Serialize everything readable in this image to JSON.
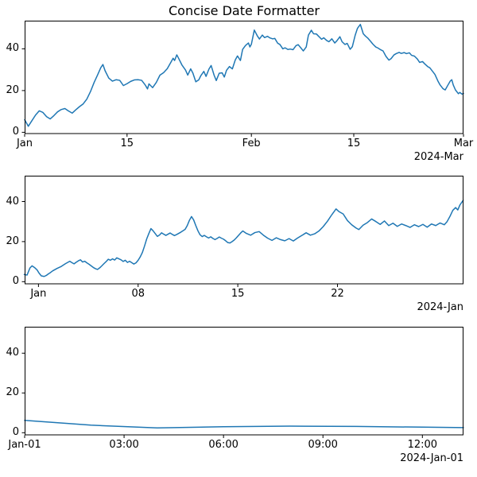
{
  "figure": {
    "title": "Concise Date Formatter",
    "background_color": "#ffffff",
    "line_color": "#1f77b4",
    "axis_color": "#000000",
    "text_color": "#000000"
  },
  "chart_data": [
    {
      "type": "line",
      "title": "",
      "xlabel": "",
      "ylabel": "",
      "description": "Random-walk time series, Jan 1 to Mar 1 2024, x in days since 2024-01-01",
      "xlim": [
        0,
        60
      ],
      "ylim": [
        -0.8,
        53.5
      ],
      "grid": false,
      "xticks": {
        "values": [
          0,
          14,
          31,
          45,
          60
        ],
        "labels": [
          "Jan",
          "15",
          "Feb",
          "15",
          "Mar"
        ]
      },
      "yticks": {
        "values": [
          0,
          20,
          40
        ],
        "labels": [
          "0",
          "20",
          "40"
        ]
      },
      "offset_label": "2024-Mar",
      "x": [
        0,
        0.5,
        1,
        1.5,
        2,
        2.5,
        3,
        3.5,
        4,
        4.5,
        5,
        5.5,
        6,
        6.5,
        7,
        7.5,
        8,
        8.5,
        9,
        9.5,
        10,
        10.4,
        10.7,
        11,
        11.5,
        12,
        12.5,
        13,
        13.5,
        14,
        14.5,
        15,
        15.5,
        16,
        16.5,
        16.8,
        17,
        17.5,
        18,
        18.5,
        19,
        19.5,
        20,
        20.3,
        20.5,
        20.8,
        21,
        21.5,
        22,
        22.3,
        22.7,
        23,
        23.4,
        23.8,
        24.1,
        24.5,
        24.8,
        25.2,
        25.5,
        25.9,
        26.2,
        26.6,
        27,
        27.3,
        27.6,
        28,
        28.4,
        28.8,
        29.1,
        29.5,
        29.8,
        30.2,
        30.6,
        30.8,
        31,
        31.4,
        31.8,
        32.1,
        32.5,
        32.8,
        33.2,
        33.5,
        33.9,
        34.2,
        34.6,
        34.9,
        35.3,
        35.6,
        36,
        36.3,
        36.7,
        37.1,
        37.4,
        37.8,
        38.1,
        38.5,
        38.8,
        39.2,
        39.5,
        39.9,
        40.2,
        40.6,
        40.9,
        41.3,
        41.6,
        42,
        42.4,
        42.7,
        43.1,
        43.4,
        43.8,
        44.1,
        44.5,
        44.8,
        45.2,
        45.5,
        45.9,
        46.3,
        46.6,
        46.9,
        47.3,
        47.6,
        48,
        48.3,
        48.7,
        49,
        49.4,
        49.8,
        50.1,
        50.5,
        50.8,
        51.2,
        51.5,
        51.9,
        52.2,
        52.6,
        52.9,
        53.3,
        53.7,
        54,
        54.4,
        54.7,
        55.1,
        55.4,
        55.8,
        56.1,
        56.5,
        56.8,
        57.2,
        57.5,
        57.9,
        58.2,
        58.4,
        58.6,
        58.9,
        59.3,
        59.5,
        59.8,
        60
      ],
      "y": [
        6.0,
        2.9,
        5.6,
        8.3,
        10.3,
        9.5,
        7.5,
        6.4,
        8.0,
        9.8,
        10.9,
        11.4,
        10.2,
        9.2,
        10.8,
        12.3,
        13.6,
        15.9,
        19.5,
        23.9,
        27.7,
        30.9,
        32.5,
        29.5,
        26.0,
        24.5,
        25.2,
        24.9,
        22.4,
        23.3,
        24.4,
        25.1,
        25.2,
        24.9,
        22.6,
        20.8,
        23.2,
        21.4,
        23.9,
        27.4,
        28.6,
        30.5,
        33.6,
        35.5,
        34.4,
        37.1,
        35.8,
        32.3,
        29.8,
        27.4,
        30.4,
        28.4,
        24.2,
        25.1,
        27.2,
        29.2,
        26.8,
        30.3,
        32.0,
        27.4,
        24.8,
        28.3,
        28.5,
        26.5,
        29.7,
        31.5,
        30.4,
        34.7,
        36.6,
        34.4,
        39.7,
        41.6,
        42.8,
        40.9,
        42.2,
        49.0,
        46.3,
        44.7,
        46.6,
        45.4,
        46.0,
        45.3,
        44.8,
        45.0,
        42.7,
        42.1,
        40.0,
        40.5,
        39.7,
        39.9,
        39.6,
        41.5,
        42.0,
        40.3,
        39.0,
        40.9,
        46.6,
        48.9,
        47.2,
        47.1,
        46.0,
        44.6,
        45.3,
        44.0,
        43.4,
        44.8,
        42.8,
        43.9,
        45.8,
        43.4,
        42.1,
        42.6,
        39.8,
        41.0,
        46.6,
        49.8,
        51.7,
        47.2,
        46.1,
        45.2,
        43.6,
        42.3,
        40.9,
        40.4,
        39.5,
        39.0,
        36.4,
        34.6,
        35.3,
        37.1,
        37.7,
        38.3,
        37.8,
        38.2,
        37.7,
        38.1,
        36.9,
        36.5,
        35.1,
        33.5,
        33.9,
        32.8,
        31.5,
        30.9,
        29.1,
        27.7,
        24.6,
        22.7,
        20.9,
        20.3,
        22.8,
        24.6,
        25.2,
        22.7,
        20.3,
        18.5,
        19.1,
        18.3,
        18.6
      ]
    },
    {
      "type": "line",
      "title": "",
      "xlabel": "",
      "ylabel": "",
      "description": "Same random walk zoomed to January 2024, x in days since 2024-01-01",
      "xlim": [
        -0.97,
        29.85
      ],
      "ylim": [
        -1.27,
        52.9
      ],
      "grid": false,
      "xticks": {
        "values": [
          0,
          7,
          14,
          21
        ],
        "labels": [
          "Jan",
          "08",
          "15",
          "22"
        ]
      },
      "yticks": {
        "values": [
          0,
          20,
          40
        ],
        "labels": [
          "0",
          "20",
          "40"
        ]
      },
      "offset_label": "2024-Jan",
      "x": [
        -1.0,
        -0.8,
        -0.6,
        -0.45,
        -0.25,
        -0.1,
        0.05,
        0.2,
        0.4,
        0.55,
        0.7,
        0.85,
        1.0,
        1.15,
        1.3,
        1.45,
        1.6,
        1.75,
        1.9,
        2.05,
        2.2,
        2.35,
        2.5,
        2.65,
        2.8,
        2.95,
        3.1,
        3.25,
        3.4,
        3.55,
        3.7,
        3.85,
        4.0,
        4.15,
        4.3,
        4.45,
        4.6,
        4.75,
        4.9,
        5.05,
        5.2,
        5.35,
        5.5,
        5.65,
        5.8,
        5.95,
        6.1,
        6.25,
        6.4,
        6.55,
        6.7,
        6.85,
        7.0,
        7.15,
        7.3,
        7.45,
        7.6,
        7.75,
        7.9,
        8.05,
        8.2,
        8.35,
        8.5,
        8.65,
        8.8,
        8.95,
        9.1,
        9.25,
        9.4,
        9.55,
        9.7,
        9.85,
        10.0,
        10.15,
        10.3,
        10.45,
        10.6,
        10.75,
        10.9,
        11.05,
        11.2,
        11.35,
        11.5,
        11.65,
        11.8,
        11.95,
        12.1,
        12.25,
        12.4,
        12.55,
        12.7,
        12.85,
        13.0,
        13.15,
        13.3,
        13.45,
        13.6,
        13.75,
        13.9,
        14.05,
        14.2,
        14.35,
        14.6,
        14.9,
        15.2,
        15.5,
        15.8,
        16.1,
        16.4,
        16.7,
        17.0,
        17.3,
        17.6,
        17.9,
        18.2,
        18.5,
        18.8,
        19.1,
        19.4,
        19.7,
        20.0,
        20.3,
        20.6,
        20.9,
        21.1,
        21.4,
        21.7,
        22.0,
        22.3,
        22.5,
        22.8,
        23.1,
        23.4,
        23.7,
        24.0,
        24.3,
        24.6,
        24.9,
        25.2,
        25.5,
        25.8,
        26.1,
        26.4,
        26.7,
        27.0,
        27.3,
        27.6,
        27.9,
        28.2,
        28.5,
        28.7,
        28.9,
        29.1,
        29.3,
        29.45,
        29.6,
        29.83
      ],
      "y": [
        3.6,
        3.3,
        6.8,
        7.9,
        6.9,
        5.9,
        4.2,
        2.9,
        2.6,
        3.1,
        3.9,
        4.6,
        5.4,
        6.0,
        6.6,
        7.1,
        7.6,
        8.3,
        9.0,
        9.6,
        10.2,
        9.5,
        8.9,
        9.7,
        10.4,
        10.9,
        9.8,
        10.2,
        9.4,
        8.7,
        7.9,
        7.1,
        6.5,
        6.1,
        6.9,
        7.9,
        9.0,
        10.0,
        11.2,
        10.7,
        11.4,
        10.8,
        11.9,
        11.4,
        10.9,
        10.1,
        10.7,
        9.6,
        10.2,
        9.5,
        8.8,
        9.4,
        10.7,
        12.4,
        14.6,
        17.8,
        21.3,
        24.0,
        26.5,
        25.4,
        24.0,
        22.6,
        23.3,
        24.4,
        23.7,
        23.1,
        23.7,
        24.3,
        23.6,
        23.0,
        23.5,
        24.1,
        24.7,
        25.4,
        26.1,
        28.0,
        30.6,
        32.5,
        30.8,
        28.0,
        25.4,
        23.4,
        22.5,
        23.1,
        22.4,
        21.8,
        22.4,
        21.6,
        21.0,
        21.6,
        22.3,
        21.7,
        21.2,
        20.4,
        19.5,
        19.3,
        20.0,
        20.8,
        21.9,
        23.1,
        24.3,
        25.3,
        24.1,
        23.2,
        24.5,
        25.0,
        23.2,
        21.7,
        20.6,
        21.9,
        21.0,
        20.4,
        21.5,
        20.3,
        21.8,
        23.1,
        24.4,
        23.2,
        23.9,
        25.3,
        27.5,
        30.2,
        33.4,
        36.3,
        35.0,
        33.8,
        30.5,
        28.4,
        26.8,
        26.0,
        28.2,
        29.5,
        31.3,
        30.0,
        28.6,
        30.3,
        28.0,
        29.2,
        27.6,
        28.8,
        28.0,
        27.1,
        28.4,
        27.5,
        28.6,
        27.2,
        28.8,
        28.0,
        29.3,
        28.4,
        30.0,
        32.6,
        35.6,
        37.0,
        35.8,
        38.3,
        40.6
      ]
    },
    {
      "type": "line",
      "title": "",
      "xlabel": "",
      "ylabel": "",
      "description": "Same random walk zoomed to first hours of Jan 1 2024, x in hours since 2024-01-01 00:00",
      "xlim": [
        0,
        13.24
      ],
      "ylim": [
        -1.28,
        53.3
      ],
      "grid": false,
      "xticks": {
        "values": [
          0,
          3,
          6,
          9,
          12
        ],
        "labels": [
          "Jan-01",
          "03:00",
          "06:00",
          "09:00",
          "12:00"
        ]
      },
      "yticks": {
        "values": [
          0,
          20,
          40
        ],
        "labels": [
          "0",
          "20",
          "40"
        ]
      },
      "offset_label": "2024-Jan-01",
      "x": [
        0,
        2,
        4,
        6,
        8,
        10,
        12,
        13.24
      ],
      "y": [
        6.2,
        3.8,
        2.4,
        3.0,
        3.3,
        3.15,
        2.8,
        2.55
      ]
    }
  ]
}
